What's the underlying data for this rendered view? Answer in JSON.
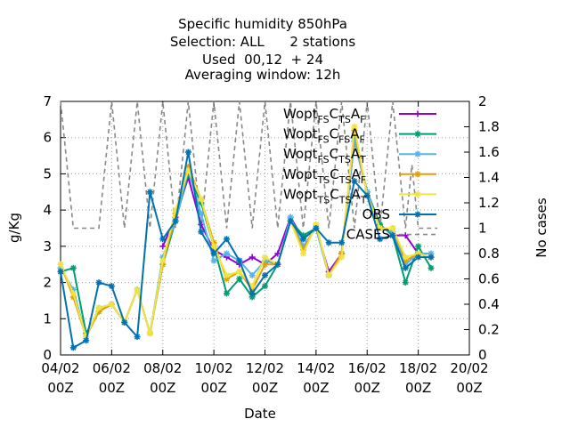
{
  "chart_data": {
    "type": "line",
    "title_lines": [
      "Specific humidity 850hPa",
      "Selection: ALL      2 stations",
      "Used  00,12  + 24",
      "Averaging window: 12h"
    ],
    "xlabel": "Date",
    "ylabel": "g/Kg",
    "y2label": "No cases",
    "xlim": [
      "04/02 00Z",
      "20/02 00Z"
    ],
    "ylim": [
      0,
      7
    ],
    "y2lim": [
      0,
      2
    ],
    "x_ticks": [
      {
        "day": "04/02",
        "hour": "00Z"
      },
      {
        "day": "06/02",
        "hour": "00Z"
      },
      {
        "day": "08/02",
        "hour": "00Z"
      },
      {
        "day": "10/02",
        "hour": "00Z"
      },
      {
        "day": "12/02",
        "hour": "00Z"
      },
      {
        "day": "14/02",
        "hour": "00Z"
      },
      {
        "day": "16/02",
        "hour": "00Z"
      },
      {
        "day": "18/02",
        "hour": "00Z"
      },
      {
        "day": "20/02",
        "hour": "00Z"
      }
    ],
    "y_ticks": [
      "0",
      "1",
      "2",
      "3",
      "4",
      "5",
      "6",
      "7"
    ],
    "y2_ticks": [
      "0",
      "0.2",
      "0.4",
      "0.6",
      "0.8",
      "1",
      "1.2",
      "1.4",
      "1.6",
      "1.8",
      "2"
    ],
    "grid": true,
    "legend_position": "top-right",
    "x": [
      "04/02 00Z",
      "04/02 12Z",
      "05/02 00Z",
      "05/02 12Z",
      "06/02 00Z",
      "06/02 12Z",
      "07/02 00Z",
      "07/02 12Z",
      "08/02 00Z",
      "08/02 12Z",
      "09/02 00Z",
      "09/02 12Z",
      "10/02 00Z",
      "10/02 12Z",
      "11/02 00Z",
      "11/02 12Z",
      "12/02 00Z",
      "12/02 12Z",
      "13/02 00Z",
      "13/02 12Z",
      "14/02 00Z",
      "14/02 12Z",
      "15/02 00Z",
      "15/02 12Z",
      "16/02 00Z",
      "16/02 12Z",
      "17/02 00Z",
      "17/02 12Z",
      "18/02 00Z",
      "18/02 12Z"
    ],
    "series": [
      {
        "name": "Wopt FS C TS A F",
        "label_main": "Wopt",
        "label_sub": "FS",
        "label_mid": "C",
        "label_sub2": "TS",
        "label_end": "A",
        "label_sub3": "F",
        "color": "#9400d3",
        "marker": "plus",
        "values": [
          null,
          null,
          null,
          null,
          null,
          null,
          null,
          null,
          3.0,
          3.8,
          4.9,
          3.6,
          2.9,
          2.7,
          2.5,
          2.7,
          2.5,
          2.8,
          3.8,
          3.2,
          3.5,
          2.3,
          2.8,
          5.9,
          4.5,
          3.6,
          3.3,
          3.3,
          2.8,
          2.7
        ]
      },
      {
        "name": "Wopt FS C FS A F",
        "label_main": "Wopt",
        "label_sub": "FS",
        "label_mid": "C",
        "label_sub2": "FS",
        "label_end": "A",
        "label_sub3": "F",
        "color": "#009e73",
        "marker": "star",
        "values": [
          2.3,
          2.4,
          0.6,
          1.2,
          1.4,
          0.9,
          1.8,
          0.6,
          2.5,
          3.7,
          5.0,
          4.2,
          3.0,
          1.7,
          2.1,
          1.6,
          1.9,
          2.5,
          3.7,
          3.3,
          3.5,
          2.2,
          2.8,
          6.0,
          4.5,
          3.6,
          3.3,
          2.0,
          3.0,
          2.4
        ]
      },
      {
        "name": "Wopt FS C TS A T",
        "label_main": "Wopt",
        "label_sub": "FS",
        "label_mid": "C",
        "label_sub2": "TS",
        "label_end": "A",
        "label_sub3": "T",
        "color": "#56b4e9",
        "marker": "star",
        "values": [
          2.4,
          1.8,
          0.5,
          1.3,
          1.4,
          0.9,
          1.8,
          0.6,
          2.7,
          3.7,
          5.1,
          3.9,
          2.6,
          2.8,
          2.6,
          2.2,
          2.6,
          2.5,
          3.8,
          3.0,
          3.5,
          2.2,
          2.8,
          5.9,
          4.5,
          3.5,
          3.4,
          2.5,
          2.8,
          2.8
        ]
      },
      {
        "name": "Wopt TS C TS A F",
        "label_main": "Wopt",
        "label_sub": "TS",
        "label_mid": "C",
        "label_sub2": "TS",
        "label_end": "A",
        "label_sub3": "F",
        "color": "#e69f00",
        "marker": "star",
        "values": [
          2.5,
          1.6,
          0.5,
          1.2,
          1.4,
          0.9,
          1.8,
          0.6,
          2.5,
          3.9,
          5.2,
          4.3,
          3.1,
          2.1,
          2.3,
          1.8,
          2.5,
          2.5,
          3.7,
          2.9,
          3.6,
          2.2,
          2.8,
          6.2,
          4.4,
          3.5,
          3.5,
          2.6,
          2.8,
          2.7
        ]
      },
      {
        "name": "Wopt TS C TS A T",
        "label_main": "Wopt",
        "label_sub": "TS",
        "label_mid": "C",
        "label_sub2": "TS",
        "label_end": "A",
        "label_sub3": "T",
        "color": "#f0e442",
        "marker": "star",
        "values": [
          2.5,
          1.7,
          0.5,
          1.3,
          1.4,
          0.9,
          1.8,
          0.6,
          2.6,
          4.0,
          5.1,
          4.3,
          3.0,
          2.2,
          2.3,
          1.9,
          2.7,
          2.5,
          3.7,
          2.8,
          3.6,
          2.2,
          2.7,
          6.3,
          4.4,
          3.5,
          3.5,
          2.7,
          2.8,
          2.7
        ]
      },
      {
        "name": "OBS",
        "label_main": "OBS",
        "color": "#0072b2",
        "marker": "star",
        "values": [
          2.3,
          0.2,
          0.4,
          2.0,
          1.9,
          0.9,
          0.5,
          4.5,
          3.2,
          3.7,
          5.6,
          3.4,
          2.8,
          3.2,
          2.6,
          1.7,
          2.2,
          2.5,
          3.7,
          3.2,
          3.5,
          3.1,
          3.1,
          4.8,
          4.4,
          3.2,
          3.3,
          2.4,
          2.7,
          2.7
        ]
      }
    ],
    "cases": {
      "name": "CASES",
      "label_main": "CASES",
      "axis": "y2",
      "color": "#888888",
      "style": "dashed",
      "x": [
        "04/02 00Z",
        "04/02 06Z",
        "04/02 12Z",
        "04/02 18Z",
        "05/02 00Z",
        "05/02 06Z",
        "05/02 12Z",
        "05/02 18Z",
        "06/02 00Z",
        "06/02 06Z",
        "06/02 12Z",
        "06/02 18Z",
        "07/02 00Z",
        "07/02 06Z",
        "07/02 12Z",
        "07/02 18Z",
        "08/02 00Z",
        "08/02 06Z",
        "08/02 12Z",
        "08/02 18Z",
        "09/02 00Z",
        "09/02 06Z",
        "09/02 12Z",
        "09/02 18Z",
        "10/02 00Z",
        "10/02 06Z",
        "10/02 12Z",
        "10/02 18Z",
        "11/02 00Z",
        "11/02 06Z",
        "11/02 12Z",
        "11/02 18Z",
        "12/02 00Z",
        "12/02 06Z",
        "12/02 12Z",
        "12/02 18Z",
        "13/02 00Z",
        "13/02 06Z",
        "13/02 12Z",
        "13/02 18Z",
        "14/02 00Z",
        "14/02 06Z",
        "14/02 12Z",
        "14/02 18Z",
        "15/02 00Z",
        "15/02 06Z",
        "15/02 12Z",
        "15/02 18Z",
        "16/02 00Z",
        "16/02 06Z",
        "16/02 12Z",
        "16/02 18Z",
        "17/02 00Z",
        "17/02 06Z",
        "17/02 12Z",
        "17/02 18Z",
        "18/02 00Z",
        "18/02 06Z",
        "18/02 12Z",
        "18/02 18Z"
      ],
      "values": [
        2,
        1.5,
        1,
        1,
        1,
        1,
        1,
        1.5,
        2,
        1.5,
        1,
        1.5,
        2,
        1.5,
        1,
        1.5,
        2,
        1.5,
        1,
        1.5,
        2,
        1.5,
        1,
        1.5,
        2,
        1.5,
        1,
        1.5,
        2,
        1.5,
        1,
        1.5,
        2,
        1.5,
        1,
        1.5,
        2,
        1.5,
        1,
        1.5,
        2,
        1.5,
        1,
        1.5,
        2,
        1.5,
        1,
        1.5,
        2,
        1.5,
        1,
        1.5,
        2,
        1.5,
        1,
        1.5,
        1,
        1,
        1,
        1
      ]
    }
  }
}
